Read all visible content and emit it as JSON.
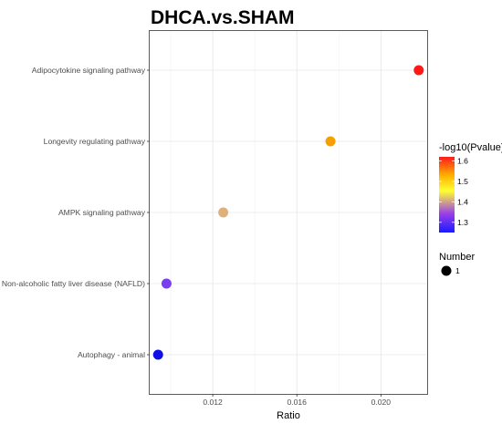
{
  "chart_data": {
    "type": "scatter",
    "title": "DHCA.vs.SHAM",
    "xlabel": "Ratio",
    "ylabel": "",
    "xlim": [
      0.009,
      0.0222
    ],
    "xticks": [
      "0.012",
      "0.016",
      "0.020"
    ],
    "xtick_values": [
      0.012,
      0.016,
      0.02
    ],
    "categories": [
      "Adipocytokine signaling pathway",
      "Longevity regulating pathway",
      "AMPK signaling pathway",
      "Non-alcoholic fatty liver disease (NAFLD)",
      "Autophagy - animal"
    ],
    "points": [
      {
        "category": "Adipocytokine signaling pathway",
        "ratio": 0.0218,
        "neglog10p": 1.6,
        "number": 1,
        "color": "#ff1a1a"
      },
      {
        "category": "Longevity regulating pathway",
        "ratio": 0.0176,
        "neglog10p": 1.5,
        "number": 1,
        "color": "#f5a000"
      },
      {
        "category": "AMPK signaling pathway",
        "ratio": 0.0125,
        "neglog10p": 1.42,
        "number": 1,
        "color": "#deb07a"
      },
      {
        "category": "Non-alcoholic fatty liver disease (NAFLD)",
        "ratio": 0.0098,
        "neglog10p": 1.3,
        "number": 1,
        "color": "#7b3df0"
      },
      {
        "category": "Autophagy - animal",
        "ratio": 0.0094,
        "neglog10p": 1.25,
        "number": 1,
        "color": "#1010e6"
      }
    ],
    "grid": true,
    "legend_position": "right",
    "color_legend": {
      "title": "-log10(Pvalue)",
      "ticks": [
        "1.6",
        "1.5",
        "1.4",
        "1.3"
      ],
      "tick_values": [
        1.6,
        1.5,
        1.4,
        1.3
      ],
      "range": [
        1.25,
        1.62
      ],
      "colors": [
        "#ff1a1a",
        "#ffd700",
        "#ffff33",
        "#9b3fe8",
        "#1a1aff"
      ]
    },
    "size_legend": {
      "title": "Number",
      "entries": [
        "1"
      ]
    }
  }
}
